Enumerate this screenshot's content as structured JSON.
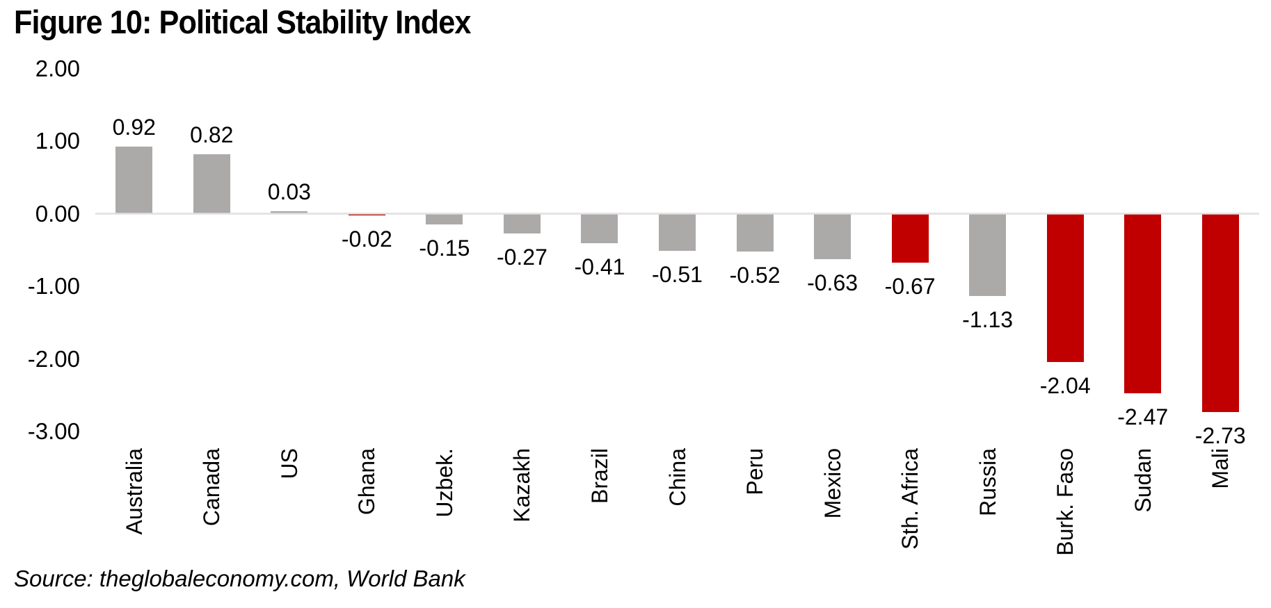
{
  "chart_data": {
    "type": "bar",
    "title": "Figure 10: Political Stability Index",
    "categories": [
      "Australia",
      "Canada",
      "US",
      "Ghana",
      "Uzbek.",
      "Kazakh",
      "Brazil",
      "China",
      "Peru",
      "Mexico",
      "Sth. Africa",
      "Russia",
      "Burk. Faso",
      "Sudan",
      "Mali"
    ],
    "values": [
      0.92,
      0.82,
      0.03,
      -0.02,
      -0.15,
      -0.27,
      -0.41,
      -0.51,
      -0.52,
      -0.63,
      -0.67,
      -1.13,
      -2.04,
      -2.47,
      -2.73
    ],
    "value_labels": [
      "0.92",
      "0.82",
      "0.03",
      "-0.02",
      "-0.15",
      "-0.27",
      "-0.41",
      "-0.51",
      "-0.52",
      "-0.63",
      "-0.67",
      "-1.13",
      "-2.04",
      "-2.47",
      "-2.73"
    ],
    "highlighted": [
      false,
      false,
      false,
      true,
      false,
      false,
      false,
      false,
      false,
      false,
      true,
      false,
      true,
      true,
      true
    ],
    "y_ticks": [
      {
        "label": "2.00",
        "value": 2
      },
      {
        "label": "1.00",
        "value": 1
      },
      {
        "label": "0.00",
        "value": 0
      },
      {
        "label": "-1.00",
        "value": -1
      },
      {
        "label": "-2.00",
        "value": -2
      },
      {
        "label": "-3.00",
        "value": -3
      }
    ],
    "ylim": [
      -3,
      2
    ],
    "xlabel": "",
    "ylabel": "",
    "grid": false,
    "legend": null,
    "colors": {
      "bar_default": "#ACA9A9",
      "bar_highlight": "#C00000",
      "axis_line": "#D9D9D9",
      "text": "#000000"
    }
  },
  "source_note": "Source: theglobaleconomy.com, World Bank"
}
